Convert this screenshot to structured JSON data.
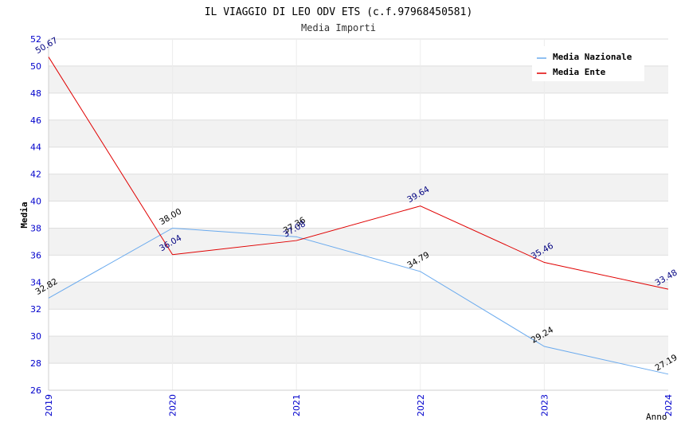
{
  "chart_data": {
    "type": "line",
    "title": "IL VIAGGIO DI LEO ODV ETS (c.f.97968450581)",
    "subtitle": "Media Importi",
    "xlabel": "Anno",
    "ylabel": "Media",
    "categories": [
      "2019",
      "2020",
      "2021",
      "2022",
      "2023",
      "2024"
    ],
    "ylim": [
      26,
      52
    ],
    "yticks": [
      26,
      28,
      30,
      32,
      34,
      36,
      38,
      40,
      42,
      44,
      46,
      48,
      50,
      52
    ],
    "legend_position": "top-right",
    "series": [
      {
        "name": "Media Nazionale",
        "color": "#6aaaee",
        "label_color": "#000000",
        "values": [
          32.82,
          38.0,
          37.36,
          34.79,
          29.24,
          27.19
        ],
        "labels": [
          "32.82",
          "38.00",
          "37.36",
          "34.79",
          "29.24",
          "27.19"
        ]
      },
      {
        "name": "Media Ente",
        "color": "#e00000",
        "label_color": "#000080",
        "values": [
          50.67,
          36.04,
          37.08,
          39.64,
          35.46,
          33.48
        ],
        "labels": [
          "50.67",
          "36.04",
          "37.08",
          "39.64",
          "35.46",
          "33.48"
        ]
      }
    ]
  }
}
